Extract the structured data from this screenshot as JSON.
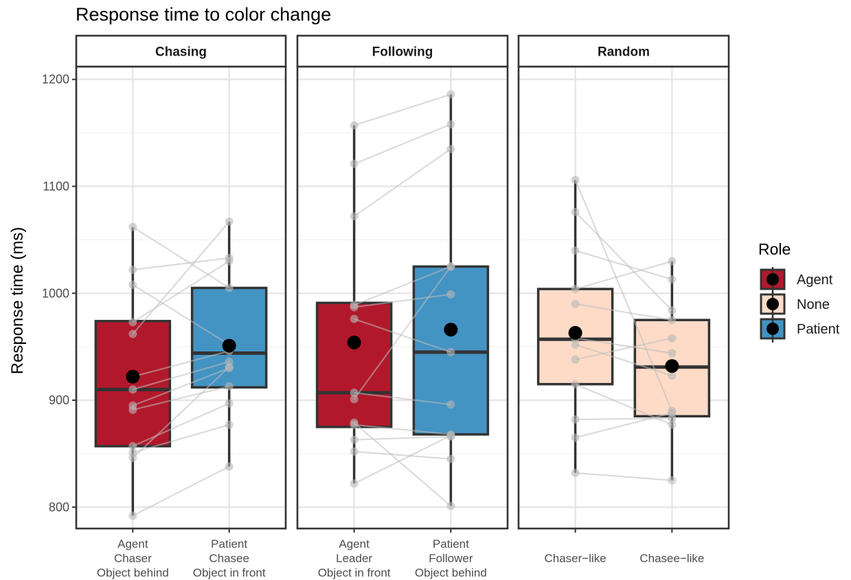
{
  "chart_data": {
    "type": "box",
    "title": "Response time to color change",
    "ylabel": "Response time (ms)",
    "xlabel": "",
    "ylim": [
      780,
      1212
    ],
    "yticks": [
      800,
      900,
      1000,
      1100,
      1200
    ],
    "grid": true,
    "legend": {
      "title": "Role",
      "placement": "right",
      "entries": [
        {
          "label": "Agent",
          "color": "#b2182b"
        },
        {
          "label": "None",
          "color": "#fddbc7"
        },
        {
          "label": "Patient",
          "color": "#4393c3"
        }
      ]
    },
    "facets": [
      {
        "name": "Chasing",
        "categories": [
          {
            "label_lines": [
              "Agent",
              "Chaser",
              "Object behind"
            ],
            "role": "Agent",
            "box": {
              "whisker_low": 792,
              "q1": 857,
              "median": 910,
              "q3": 974,
              "whisker_high": 1062
            },
            "mean": 922
          },
          {
            "label_lines": [
              "Patient",
              "Chasee",
              "Object in front"
            ],
            "role": "Patient",
            "box": {
              "whisker_low": 838,
              "q1": 912,
              "median": 944,
              "q3": 1005,
              "whisker_high": 1067
            },
            "mean": 951
          }
        ],
        "pairs": [
          [
            1062,
            1005
          ],
          [
            1022,
            1033
          ],
          [
            1008,
            952
          ],
          [
            973,
            1030
          ],
          [
            962,
            1067
          ],
          [
            922,
            946
          ],
          [
            910,
            936
          ],
          [
            895,
            930
          ],
          [
            891,
            913
          ],
          [
            857,
            897
          ],
          [
            851,
            877
          ],
          [
            846,
            931
          ],
          [
            792,
            838
          ]
        ]
      },
      {
        "name": "Following",
        "categories": [
          {
            "label_lines": [
              "Agent",
              "Leader",
              "Object in front"
            ],
            "role": "Agent",
            "box": {
              "whisker_low": 822,
              "q1": 875,
              "median": 907,
              "q3": 991,
              "whisker_high": 1157
            },
            "mean": 954
          },
          {
            "label_lines": [
              "Patient",
              "Follower",
              "Object behind"
            ],
            "role": "Patient",
            "box": {
              "whisker_low": 801,
              "q1": 868,
              "median": 945,
              "q3": 1025,
              "whisker_high": 1186
            },
            "mean": 966
          }
        ],
        "pairs": [
          [
            1157,
            1186
          ],
          [
            1121,
            1158
          ],
          [
            1072,
            1135
          ],
          [
            989,
            1025
          ],
          [
            987,
            999
          ],
          [
            976,
            945
          ],
          [
            907,
            896
          ],
          [
            901,
            1025
          ],
          [
            879,
            801
          ],
          [
            877,
            868
          ],
          [
            863,
            866
          ],
          [
            852,
            845
          ],
          [
            822,
            867
          ]
        ]
      },
      {
        "name": "Random",
        "categories": [
          {
            "label_lines": [
              "Chaser−like"
            ],
            "role": "None",
            "box": {
              "whisker_low": 832,
              "q1": 915,
              "median": 957,
              "q3": 1004,
              "whisker_high": 1106
            },
            "mean": 963
          },
          {
            "label_lines": [
              "Chasee−like"
            ],
            "role": "None",
            "box": {
              "whisker_low": 825,
              "q1": 885,
              "median": 931,
              "q3": 975,
              "whisker_high": 1030
            },
            "mean": 932
          }
        ],
        "pairs": [
          [
            1106,
            890
          ],
          [
            1076,
            984
          ],
          [
            1040,
            1013
          ],
          [
            1004,
            1030
          ],
          [
            990,
            975
          ],
          [
            958,
            944
          ],
          [
            952,
            923
          ],
          [
            938,
            958
          ],
          [
            915,
            877
          ],
          [
            882,
            883
          ],
          [
            865,
            888
          ],
          [
            832,
            825
          ]
        ]
      }
    ]
  }
}
